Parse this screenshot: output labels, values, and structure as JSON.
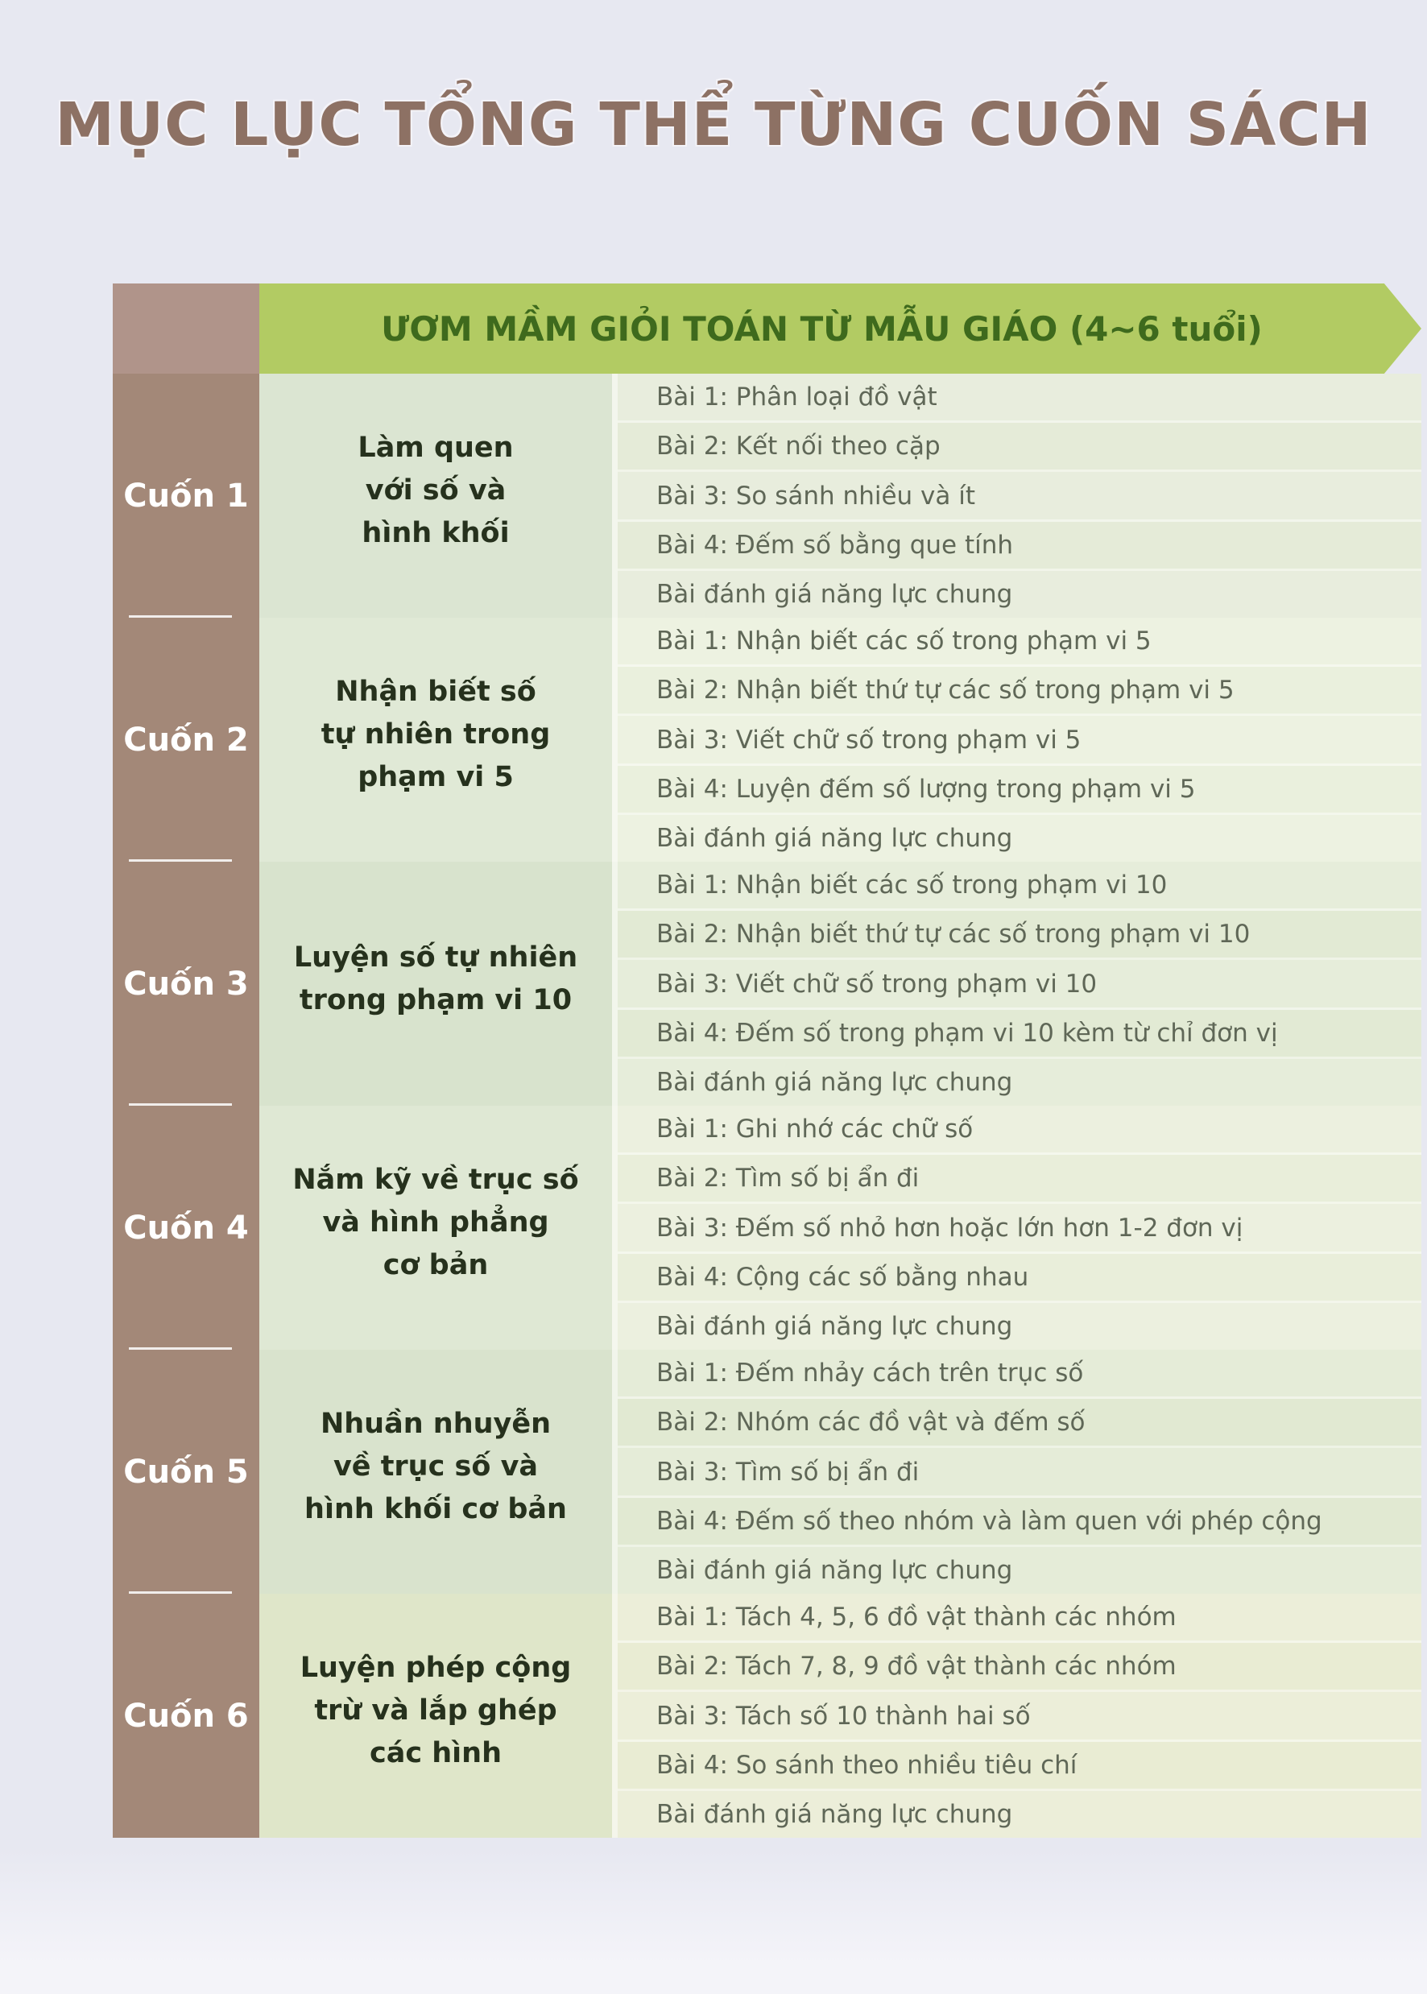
{
  "page": {
    "title": "MỤC LỤC TỔNG THỂ TỪNG CUỐN SÁCH",
    "banner": "ƯƠM MẦM GIỎI TOÁN TỪ MẪU GIÁO (4~6 tuổi)"
  },
  "colors": {
    "page_background": "#e7e8f1",
    "title_text": "#8d7164",
    "banner_background": "#b2cb63",
    "banner_text": "#3e6a1d",
    "volume_column": "#a38878",
    "volume_text": "#ffffff",
    "book_title_cell": "#dde6d3",
    "lesson_cell": "#e8edda",
    "lesson_text": "#5f6757",
    "book_title_text": "#26311d"
  },
  "sections": [
    {
      "volume": "Cuốn 1",
      "title_lines": [
        "Làm quen",
        "với số và",
        "hình khối"
      ],
      "lessons": [
        "Bài 1: Phân loại đồ vật",
        "Bài 2: Kết nối theo cặp",
        "Bài 3: So sánh nhiều và ít",
        "Bài 4: Đếm số bằng que tính",
        "Bài đánh giá năng lực chung"
      ]
    },
    {
      "volume": "Cuốn 2",
      "title_lines": [
        "Nhận biết số",
        "tự nhiên trong",
        "phạm vi 5"
      ],
      "lessons": [
        "Bài 1: Nhận biết các số trong phạm vi 5",
        "Bài 2: Nhận biết thứ tự các số trong phạm vi 5",
        "Bài 3: Viết chữ số trong phạm vi 5",
        "Bài 4: Luyện đếm số lượng trong phạm vi 5",
        "Bài đánh giá năng lực chung"
      ]
    },
    {
      "volume": "Cuốn 3",
      "title_lines": [
        "Luyện số tự nhiên",
        "trong phạm vi 10"
      ],
      "lessons": [
        "Bài 1: Nhận biết các số trong phạm vi 10",
        "Bài 2: Nhận biết thứ tự các số trong phạm vi 10",
        "Bài 3: Viết chữ số trong phạm vi 10",
        "Bài 4: Đếm số trong phạm vi 10 kèm từ chỉ đơn vị",
        "Bài đánh giá năng lực chung"
      ]
    },
    {
      "volume": "Cuốn 4",
      "title_lines": [
        "Nắm kỹ về trục số",
        "và hình phẳng",
        "cơ bản"
      ],
      "lessons": [
        "Bài 1: Ghi nhớ các chữ số",
        "Bài 2: Tìm số bị ẩn đi",
        "Bài 3: Đếm số nhỏ hơn hoặc lớn hơn 1-2 đơn vị",
        "Bài 4: Cộng các số bằng nhau",
        "Bài đánh giá năng lực chung"
      ]
    },
    {
      "volume": "Cuốn 5",
      "title_lines": [
        "Nhuần nhuyễn",
        "về trục số và",
        "hình khối cơ bản"
      ],
      "lessons": [
        "Bài 1: Đếm nhảy cách trên trục số",
        "Bài 2: Nhóm các đồ vật và đếm số",
        "Bài 3: Tìm số bị ẩn đi",
        "Bài 4: Đếm số theo nhóm và làm quen với phép cộng",
        "Bài đánh giá năng lực chung"
      ]
    },
    {
      "volume": "Cuốn 6",
      "title_lines": [
        "Luyện phép cộng",
        "trừ và lắp ghép",
        "các hình"
      ],
      "lessons": [
        "Bài 1: Tách 4, 5, 6 đồ vật thành các nhóm",
        "Bài 2: Tách 7, 8, 9 đồ vật thành các nhóm",
        "Bài 3: Tách số 10 thành hai số",
        "Bài 4: So sánh theo nhiều tiêu chí",
        "Bài đánh giá năng lực chung"
      ]
    }
  ]
}
